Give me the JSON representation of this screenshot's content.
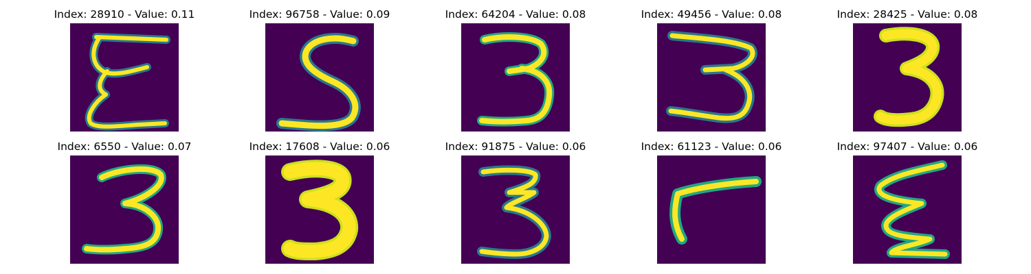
{
  "chart_data": {
    "type": "image-grid",
    "colormap": "viridis",
    "background_color": "#440154",
    "stroke_colors": [
      "#fde725",
      "#cde11d",
      "#22a884",
      "#2a788e"
    ],
    "axes": "off",
    "rows": 2,
    "columns": 5,
    "panels": [
      {
        "index": 28910,
        "value": 0.11,
        "title": "Index: 28910 - Value: 0.11",
        "glyph": "E-like"
      },
      {
        "index": 96758,
        "value": 0.09,
        "title": "Index: 96758 - Value: 0.09",
        "glyph": "S"
      },
      {
        "index": 64204,
        "value": 0.08,
        "title": "Index: 64204 - Value: 0.08",
        "glyph": "3"
      },
      {
        "index": 49456,
        "value": 0.08,
        "title": "Index: 49456 - Value: 0.08",
        "glyph": "3"
      },
      {
        "index": 28425,
        "value": 0.08,
        "title": "Index: 28425 - Value: 0.08",
        "glyph": "3"
      },
      {
        "index": 6550,
        "value": 0.07,
        "title": "Index: 6550 - Value: 0.07",
        "glyph": "3"
      },
      {
        "index": 17608,
        "value": 0.06,
        "title": "Index: 17608 - Value: 0.06",
        "glyph": "3"
      },
      {
        "index": 91875,
        "value": 0.06,
        "title": "Index: 91875 - Value: 0.06",
        "glyph": "3"
      },
      {
        "index": 61123,
        "value": 0.06,
        "title": "Index: 61123 - Value: 0.06",
        "glyph": "r-like"
      },
      {
        "index": 97407,
        "value": 0.06,
        "title": "Index: 97407 - Value: 0.06",
        "glyph": "E-like"
      }
    ]
  }
}
